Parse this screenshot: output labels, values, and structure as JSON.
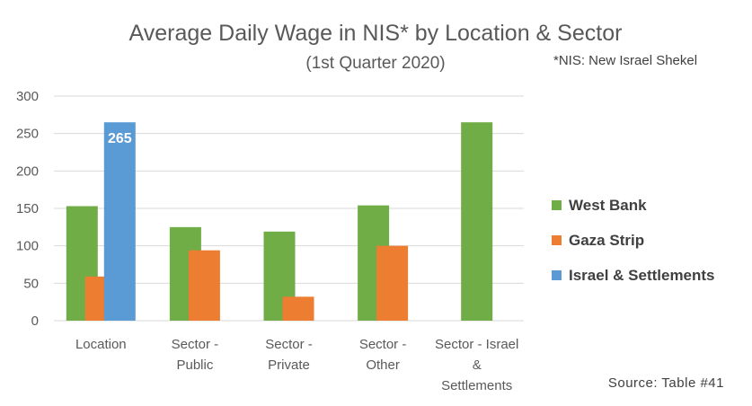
{
  "chart_data": {
    "type": "bar",
    "title": "Average Daily Wage in NIS* by Location & Sector",
    "subtitle": "(1st Quarter 2020)",
    "note": "*NIS: New Israel Shekel",
    "source": "Source: Table #41",
    "categories": [
      [
        "Location"
      ],
      [
        "Sector -",
        "Public"
      ],
      [
        "Sector -",
        "Private"
      ],
      [
        "Sector -",
        "Other"
      ],
      [
        "Sector - Israel",
        "&",
        "Settlements"
      ]
    ],
    "series": [
      {
        "name": "West Bank",
        "color": "#70ad47",
        "values": [
          153,
          125,
          119,
          154,
          265
        ]
      },
      {
        "name": "Gaza Strip",
        "color": "#ed7d31",
        "values": [
          59,
          94,
          32,
          100,
          null
        ]
      },
      {
        "name": "Israel & Settlements",
        "color": "#5b9bd5",
        "values": [
          265,
          null,
          null,
          null,
          null
        ]
      }
    ],
    "data_labels": [
      {
        "series": 2,
        "category": 0,
        "text": "265"
      }
    ],
    "ylim": [
      0,
      300
    ],
    "yticks": [
      0,
      50,
      100,
      150,
      200,
      250,
      300
    ],
    "xlabel": "",
    "ylabel": "",
    "grid": true,
    "legend_position": "right"
  }
}
